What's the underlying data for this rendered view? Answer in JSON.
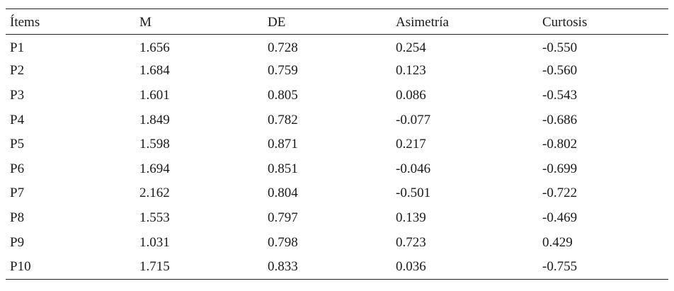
{
  "table": {
    "headers": [
      "Ítems",
      "M",
      "DE",
      "Asimetría",
      "Curtosis"
    ],
    "rows": [
      [
        "P1",
        "1.656",
        "0.728",
        "0.254",
        "-0.550"
      ],
      [
        "P2",
        "1.684",
        "0.759",
        "0.123",
        "-0.560"
      ],
      [
        "P3",
        "1.601",
        "0.805",
        "0.086",
        "-0.543"
      ],
      [
        "P4",
        "1.849",
        "0.782",
        "-0.077",
        "-0.686"
      ],
      [
        "P5",
        "1.598",
        "0.871",
        "0.217",
        "-0.802"
      ],
      [
        "P6",
        "1.694",
        "0.851",
        "-0.046",
        "-0.699"
      ],
      [
        "P7",
        "2.162",
        "0.804",
        "-0.501",
        "-0.722"
      ],
      [
        "P8",
        "1.553",
        "0.797",
        "0.139",
        "-0.469"
      ],
      [
        "P9",
        "1.031",
        "0.798",
        "0.723",
        "0.429"
      ],
      [
        "P10",
        "1.715",
        "0.833",
        "0.036",
        "-0.755"
      ]
    ]
  }
}
